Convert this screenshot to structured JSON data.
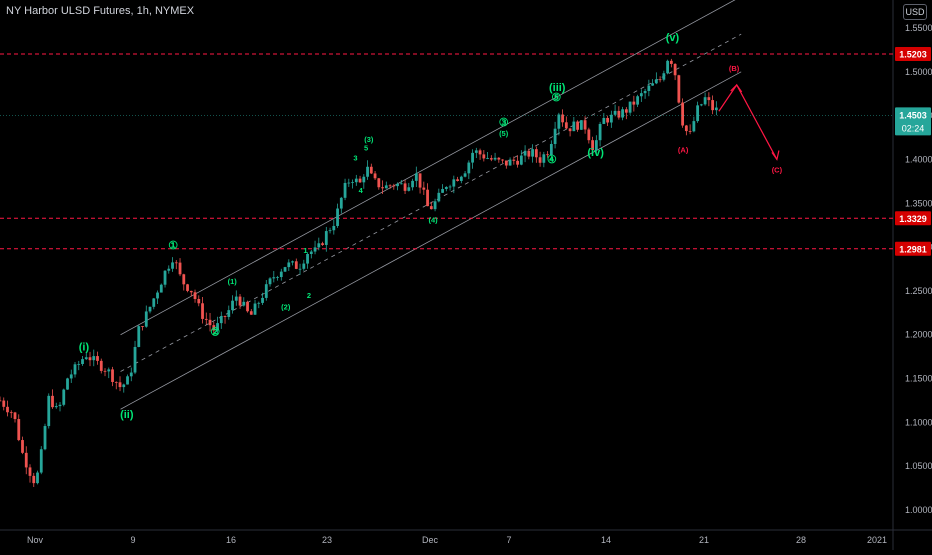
{
  "title": "NY Harbor ULSD Futures, 1h, NYMEX",
  "currency": "USD",
  "chart_data": {
    "type": "candlestick",
    "y_ticks": [
      "1.5500",
      "1.5000",
      "1.4500",
      "1.4000",
      "1.3500",
      "1.3000",
      "1.2500",
      "1.2000",
      "1.1500",
      "1.1000",
      "1.0500",
      "1.0000"
    ],
    "x_ticks": [
      "Nov",
      "9",
      "16",
      "23",
      "Dec",
      "7",
      "14",
      "21",
      "28",
      "2021"
    ],
    "ylim": [
      0.985,
      1.575
    ],
    "x_range": [
      0,
      100
    ],
    "last_price": {
      "label": "1.4503",
      "value": 1.4503,
      "countdown": "02:24",
      "color": "#26a69a"
    },
    "horizontal_levels": [
      {
        "label": "1.5203",
        "value": 1.5203,
        "color": "#ff1744"
      },
      {
        "label": "1.3329",
        "value": 1.3329,
        "color": "#ff1744"
      },
      {
        "label": "1.2981",
        "value": 1.2981,
        "color": "#ff1744"
      }
    ],
    "channel": {
      "upper": [
        [
          13.5,
          1.2
        ],
        [
          83.0,
          1.586
        ]
      ],
      "middle": [
        [
          13.5,
          1.158
        ],
        [
          83.0,
          1.543
        ]
      ],
      "lower": [
        [
          13.5,
          1.115
        ],
        [
          83.0,
          1.5
        ]
      ]
    },
    "price_path": [
      [
        0,
        1.125
      ],
      [
        1.5,
        1.11
      ],
      [
        2.5,
        1.065
      ],
      [
        3.5,
        1.04
      ],
      [
        4,
        1.03
      ],
      [
        4.6,
        1.062
      ],
      [
        5.5,
        1.13
      ],
      [
        6.5,
        1.11
      ],
      [
        7.5,
        1.15
      ],
      [
        8.5,
        1.162
      ],
      [
        9.6,
        1.178
      ],
      [
        10.5,
        1.17
      ],
      [
        12,
        1.16
      ],
      [
        13.5,
        1.14
      ],
      [
        14.5,
        1.15
      ],
      [
        15.5,
        1.205
      ],
      [
        16.5,
        1.225
      ],
      [
        17.5,
        1.248
      ],
      [
        18.5,
        1.272
      ],
      [
        19.4,
        1.29
      ],
      [
        20.3,
        1.262
      ],
      [
        21.5,
        1.25
      ],
      [
        22.5,
        1.225
      ],
      [
        24,
        1.205
      ],
      [
        25.5,
        1.225
      ],
      [
        26.5,
        1.245
      ],
      [
        28,
        1.22
      ],
      [
        29,
        1.238
      ],
      [
        30.5,
        1.265
      ],
      [
        32,
        1.28
      ],
      [
        33.5,
        1.278
      ],
      [
        34.5,
        1.295
      ],
      [
        35.5,
        1.295
      ],
      [
        36.5,
        1.315
      ],
      [
        37.5,
        1.33
      ],
      [
        38.5,
        1.365
      ],
      [
        39.3,
        1.38
      ],
      [
        40.3,
        1.372
      ],
      [
        41,
        1.392
      ],
      [
        41.8,
        1.375
      ],
      [
        43,
        1.368
      ],
      [
        44,
        1.372
      ],
      [
        45.5,
        1.37
      ],
      [
        46.5,
        1.385
      ],
      [
        47.2,
        1.368
      ],
      [
        48,
        1.342
      ],
      [
        49,
        1.354
      ],
      [
        50,
        1.372
      ],
      [
        51,
        1.378
      ],
      [
        52.2,
        1.39
      ],
      [
        53,
        1.41
      ],
      [
        54,
        1.405
      ],
      [
        55,
        1.4
      ],
      [
        56.5,
        1.395
      ],
      [
        58,
        1.4
      ],
      [
        59.5,
        1.408
      ],
      [
        60.5,
        1.4
      ],
      [
        61.5,
        1.412
      ],
      [
        62.5,
        1.456
      ],
      [
        63.5,
        1.435
      ],
      [
        64.5,
        1.44
      ],
      [
        65.5,
        1.438
      ],
      [
        66.5,
        1.412
      ],
      [
        67.5,
        1.445
      ],
      [
        68.5,
        1.448
      ],
      [
        70,
        1.455
      ],
      [
        71,
        1.465
      ],
      [
        72.5,
        1.48
      ],
      [
        74,
        1.492
      ],
      [
        74.9,
        1.52
      ],
      [
        75.5,
        1.505
      ],
      [
        76,
        1.47
      ],
      [
        76.5,
        1.44
      ],
      [
        77.2,
        1.425
      ],
      [
        78,
        1.455
      ],
      [
        79,
        1.47
      ],
      [
        79.8,
        1.458
      ],
      [
        80.5,
        1.455
      ]
    ],
    "projection": [
      [
        80.5,
        1.455
      ],
      [
        82.5,
        1.485
      ],
      [
        87.0,
        1.4
      ]
    ],
    "wave_labels": [
      {
        "text": "(i)",
        "x": 9.4,
        "y": 1.182,
        "color": "#00e676",
        "size": "large"
      },
      {
        "text": "(ii)",
        "x": 14.2,
        "y": 1.105,
        "color": "#00e676",
        "size": "large"
      },
      {
        "text": "①",
        "x": 19.4,
        "y": 1.298,
        "color": "#00e676",
        "size": "large"
      },
      {
        "text": "②",
        "x": 24.1,
        "y": 1.199,
        "color": "#00e676",
        "size": "large"
      },
      {
        "text": "(1)",
        "x": 26.0,
        "y": 1.258,
        "color": "#00e676",
        "size": "small"
      },
      {
        "text": "(2)",
        "x": 32.0,
        "y": 1.229,
        "color": "#00e676",
        "size": "small"
      },
      {
        "text": "2",
        "x": 34.6,
        "y": 1.242,
        "color": "#00e676",
        "size": "small"
      },
      {
        "text": "1",
        "x": 34.2,
        "y": 1.293,
        "color": "#00e676",
        "size": "small"
      },
      {
        "text": "3",
        "x": 39.8,
        "y": 1.399,
        "color": "#00e676",
        "size": "small"
      },
      {
        "text": "(3)",
        "x": 41.3,
        "y": 1.42,
        "color": "#00e676",
        "size": "small"
      },
      {
        "text": "5",
        "x": 41.0,
        "y": 1.41,
        "color": "#00e676",
        "size": "small"
      },
      {
        "text": "4",
        "x": 40.4,
        "y": 1.362,
        "color": "#00e676",
        "size": "small"
      },
      {
        "text": "(4)",
        "x": 48.5,
        "y": 1.328,
        "color": "#00e676",
        "size": "small"
      },
      {
        "text": "③",
        "x": 56.4,
        "y": 1.438,
        "color": "#00e676",
        "size": "large"
      },
      {
        "text": "(5)",
        "x": 56.4,
        "y": 1.427,
        "color": "#00e676",
        "size": "small"
      },
      {
        "text": "④",
        "x": 61.8,
        "y": 1.396,
        "color": "#00e676",
        "size": "large"
      },
      {
        "text": "(iii)",
        "x": 62.4,
        "y": 1.478,
        "color": "#00e676",
        "size": "large"
      },
      {
        "text": "⑤",
        "x": 62.3,
        "y": 1.4665,
        "color": "#00e676",
        "size": "large"
      },
      {
        "text": "(iv)",
        "x": 66.7,
        "y": 1.404,
        "color": "#00e676",
        "size": "large"
      },
      {
        "text": "(v)",
        "x": 75.3,
        "y": 1.535,
        "color": "#00e676",
        "size": "large"
      },
      {
        "text": "(A)",
        "x": 76.5,
        "y": 1.408,
        "color": "#ff1744",
        "size": "small"
      },
      {
        "text": "(B)",
        "x": 82.2,
        "y": 1.501,
        "color": "#ff1744",
        "size": "small"
      },
      {
        "text": "(C)",
        "x": 87.0,
        "y": 1.385,
        "color": "#ff1744",
        "size": "small"
      }
    ]
  }
}
